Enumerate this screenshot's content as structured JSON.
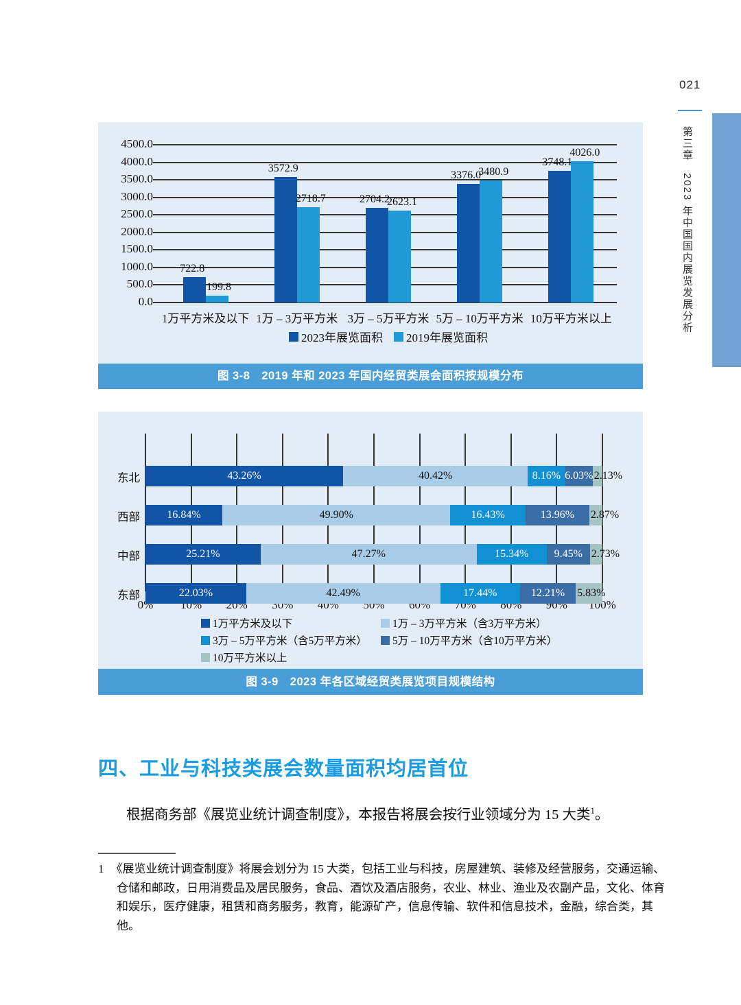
{
  "page": {
    "number": "021"
  },
  "sidebar": {
    "chapter_title": "第三章　2023 年中国国内展览发展分析",
    "bar_color": "#74a3d3"
  },
  "chart_data": [
    {
      "type": "bar",
      "title": "图 3-8　2019 年和 2023 年国内经贸类展会面积按规模分布",
      "categories": [
        "1万平方米及以下",
        "1万 – 3万平方米",
        "3万 – 5万平方米",
        "5万 – 10万平方米",
        "10万平方米以上"
      ],
      "series": [
        {
          "name": "2023年展览面积",
          "color": "#1254a6",
          "values": [
            722.8,
            3572.9,
            2704.2,
            3376.0,
            3748.1
          ]
        },
        {
          "name": "2019年展览面积",
          "color": "#229ad8",
          "values": [
            199.8,
            2718.7,
            2623.1,
            3480.9,
            4026.0
          ]
        }
      ],
      "xlabel": "",
      "ylabel": "",
      "ylim": [
        0,
        4500
      ],
      "yticks": [
        "4500.0",
        "4000.0",
        "3500.0",
        "3000.0",
        "2500.0",
        "2000.0",
        "1500.0",
        "1000.0",
        "500.0",
        "0.0"
      ],
      "grid": "horizontal",
      "legend_position": "bottom"
    },
    {
      "type": "bar-horizontal-stacked",
      "title": "图 3-9　2023 年各区域经贸类展览项目规模结构",
      "categories": [
        "东北",
        "西部",
        "中部",
        "东部"
      ],
      "series": [
        {
          "name": "1万平方米及以下",
          "color": "#1254a6",
          "text": "#ffffff",
          "values": [
            43.26,
            16.84,
            25.21,
            22.03
          ]
        },
        {
          "name": "1万 – 3万平方米（含3万平方米）",
          "color": "#a9cde9",
          "text": "#111111",
          "values": [
            40.42,
            49.9,
            47.27,
            42.49
          ]
        },
        {
          "name": "3万 – 5万平方米（含5万平方米）",
          "color": "#1190d3",
          "text": "#ffffff",
          "values": [
            8.16,
            16.43,
            15.34,
            17.44
          ]
        },
        {
          "name": "5万 – 10万平方米（含10万平方米）",
          "color": "#3a6da6",
          "text": "#ffffff",
          "values": [
            6.03,
            13.96,
            9.45,
            12.21
          ]
        },
        {
          "name": "10万平方米以上",
          "color": "#a7c4c4",
          "text": "#111111",
          "values": [
            2.13,
            2.87,
            2.73,
            5.83
          ]
        }
      ],
      "xlim": [
        0,
        100
      ],
      "xticks": [
        "0%",
        "10%",
        "20%",
        "30%",
        "40%",
        "50%",
        "60%",
        "70%",
        "80%",
        "90%",
        "100%"
      ],
      "grid": "vertical",
      "legend_position": "bottom"
    }
  ],
  "section": {
    "heading": "四、工业与科技类展会数量面积均居首位",
    "paragraph": "根据商务部《展览业统计调查制度》，本报告将展会按行业领域分为 15 大类",
    "footnote_ref": "1",
    "paragraph_end": "。"
  },
  "footnote": {
    "marker": "1",
    "text": "《展览业统计调查制度》将展会划分为 15 大类，包括工业与科技，房屋建筑、装修及经营服务，交通运输、仓储和邮政，日用消费品及居民服务，食品、酒饮及酒店服务，农业、林业、渔业及农副产品，文化、体育和娱乐，医疗健康，租赁和商务服务，教育，能源矿产，信息传输、软件和信息技术，金融，综合类，其他。"
  }
}
